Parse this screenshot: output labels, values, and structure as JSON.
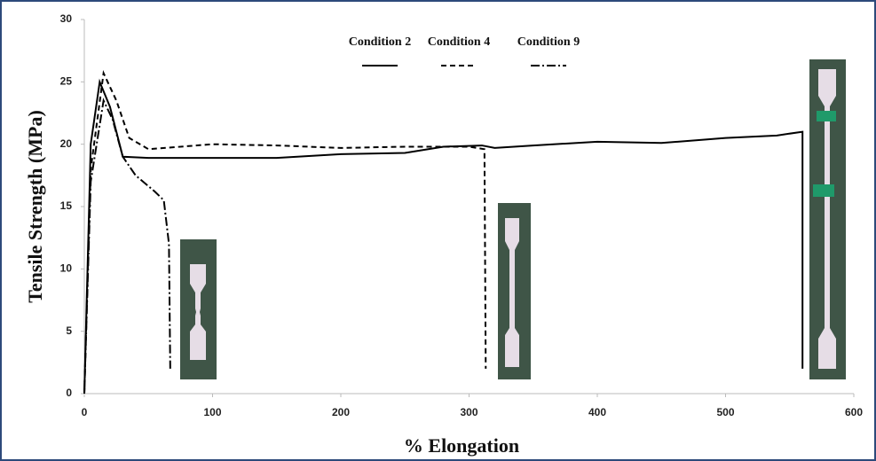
{
  "chart_data": {
    "type": "line",
    "x_label": "% Elongation",
    "y_label": "Tensile Strength (MPa)",
    "xlim": [
      0,
      600
    ],
    "xticks": [
      0,
      100,
      200,
      300,
      400,
      500,
      600
    ],
    "ylim": [
      0,
      30
    ],
    "yticks": [
      0,
      5,
      10,
      15,
      20,
      25,
      30
    ],
    "grid": false,
    "legend": "top",
    "series": [
      {
        "name": "Condition 2",
        "color": "#000000",
        "dash": "none",
        "x": [
          0,
          5,
          12,
          20,
          30,
          50,
          100,
          150,
          200,
          250,
          280,
          310,
          320,
          350,
          400,
          450,
          500,
          540,
          560,
          560
        ],
        "values": [
          0,
          20,
          25,
          23,
          19,
          18.9,
          18.9,
          18.9,
          19.2,
          19.3,
          19.8,
          19.9,
          19.7,
          19.9,
          20.2,
          20.1,
          20.5,
          20.7,
          21,
          2
        ]
      },
      {
        "name": "Condition 4",
        "color": "#000000",
        "dash": "6,4",
        "x": [
          0,
          5,
          15,
          25,
          35,
          50,
          100,
          150,
          200,
          250,
          300,
          312,
          313
        ],
        "values": [
          0,
          18,
          25.7,
          23.5,
          20.5,
          19.6,
          20,
          19.9,
          19.7,
          19.8,
          19.8,
          19.6,
          2
        ]
      },
      {
        "name": "Condition 9",
        "color": "#000000",
        "dash": "10,3,2,3",
        "x": [
          0,
          5,
          15,
          22,
          30,
          40,
          55,
          62,
          66,
          67
        ],
        "values": [
          0,
          17,
          23.5,
          22,
          19,
          17.5,
          16.2,
          15.5,
          12,
          2
        ]
      }
    ]
  }
}
